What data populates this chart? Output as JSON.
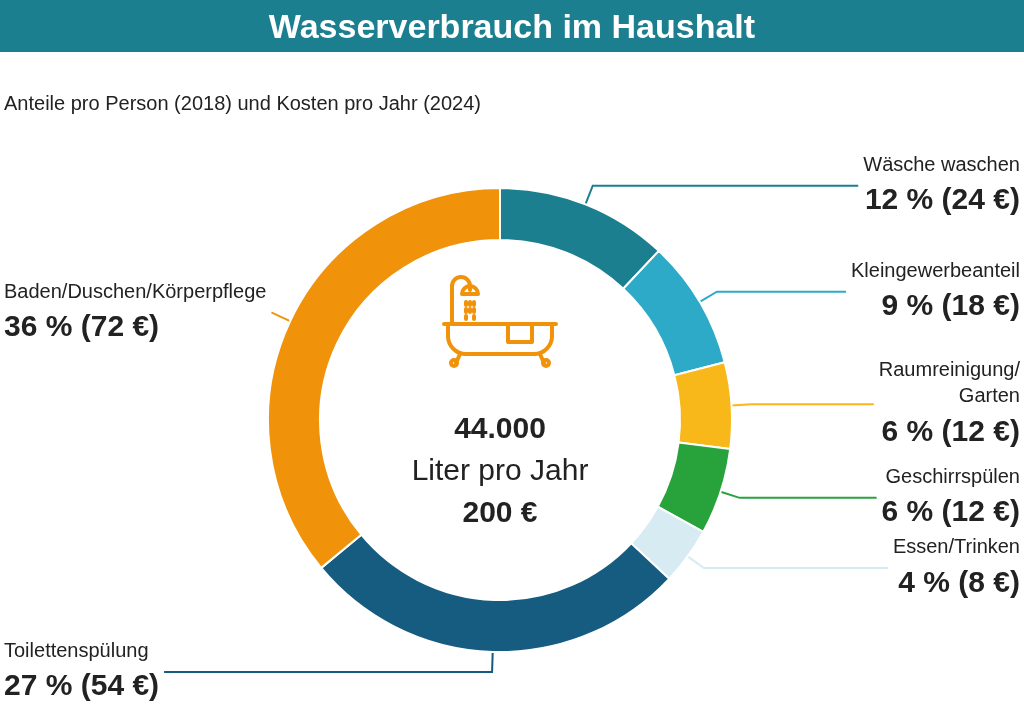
{
  "chart_data": {
    "type": "donut",
    "title": "Wasserverbrauch im Haushalt",
    "subtitle": "Anteile pro Person (2018) und Kosten pro Jahr (2024)",
    "categories": [
      "Wäsche waschen",
      "Kleingewerbeanteil",
      "Raumreinigung/\nGarten",
      "Geschirrspülen",
      "Essen/Trinken",
      "Toilettenspülung",
      "Baden/Duschen/Körperpflege"
    ],
    "values": [
      12,
      9,
      6,
      6,
      4,
      27,
      36
    ],
    "value_labels": [
      "12 % (24 €)",
      "9 % (18 €)",
      "6 % (12 €)",
      "6 % (12 €)",
      "4 % (8 €)",
      "27 % (54 €)",
      "36 % (72 €)"
    ],
    "colors": [
      "#1b7f8f",
      "#2eaac9",
      "#f8b81a",
      "#28a33b",
      "#d6ebf2",
      "#165b80",
      "#f0930b"
    ],
    "annotations": [
      "44.000",
      "Liter pro Jahr",
      "200 €"
    ],
    "legend": false
  }
}
